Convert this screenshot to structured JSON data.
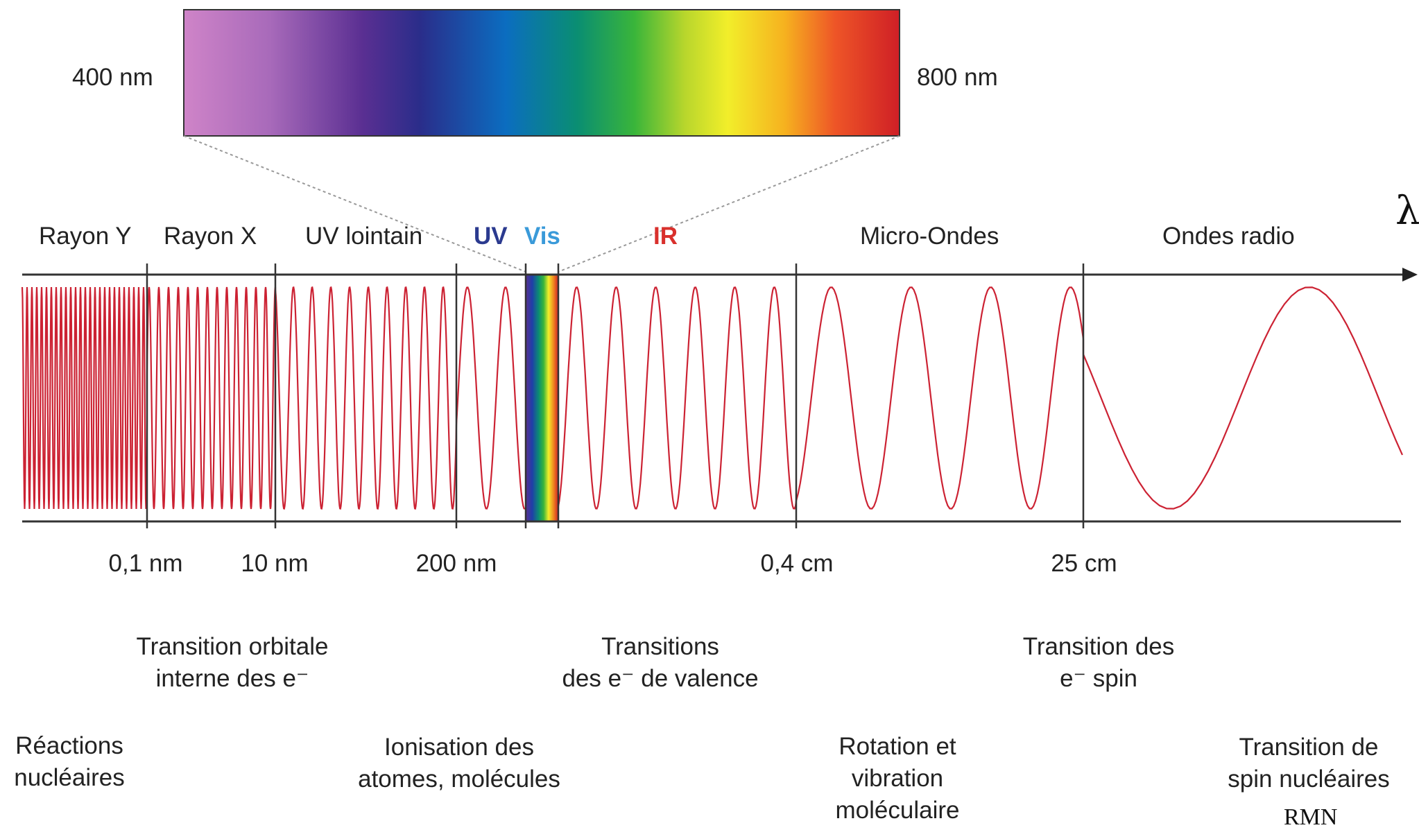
{
  "axis_symbol": "λ",
  "visible_range": {
    "start": "400 nm",
    "end": "800 nm"
  },
  "regions": [
    {
      "label": "Rayon Y",
      "color": "#222222"
    },
    {
      "label": "Rayon X",
      "color": "#222222"
    },
    {
      "label": "UV lointain",
      "color": "#222222"
    },
    {
      "label": "UV",
      "color": "#2b3a8f"
    },
    {
      "label": "Vis",
      "color": "#3a9ad9"
    },
    {
      "label": "IR",
      "color": "#d9302c"
    },
    {
      "label": "Micro-Ondes",
      "color": "#222222"
    },
    {
      "label": "Ondes radio",
      "color": "#222222"
    }
  ],
  "ticks": [
    "0,1 nm",
    "10 nm",
    "200 nm",
    "0,4 cm",
    "25 cm"
  ],
  "transitions": {
    "inner_orbital": [
      "Transition orbitale",
      "interne des e⁻"
    ],
    "valence": [
      "Transitions",
      "des e⁻ de valence"
    ],
    "electron_spin": [
      "Transition des",
      "e⁻ spin"
    ],
    "nuclear_reactions": [
      "Réactions",
      "nucléaires"
    ],
    "ionisation": [
      "Ionisation des",
      "atomes, molécules"
    ],
    "rotation_vibration": [
      "Rotation et",
      "vibration",
      "moléculaire"
    ],
    "nuclear_spin": [
      "Transition de",
      "spin nucléaires"
    ]
  },
  "rmn_label": "RMN",
  "colors": {
    "wave": "#cc2233",
    "axis": "#333333"
  }
}
